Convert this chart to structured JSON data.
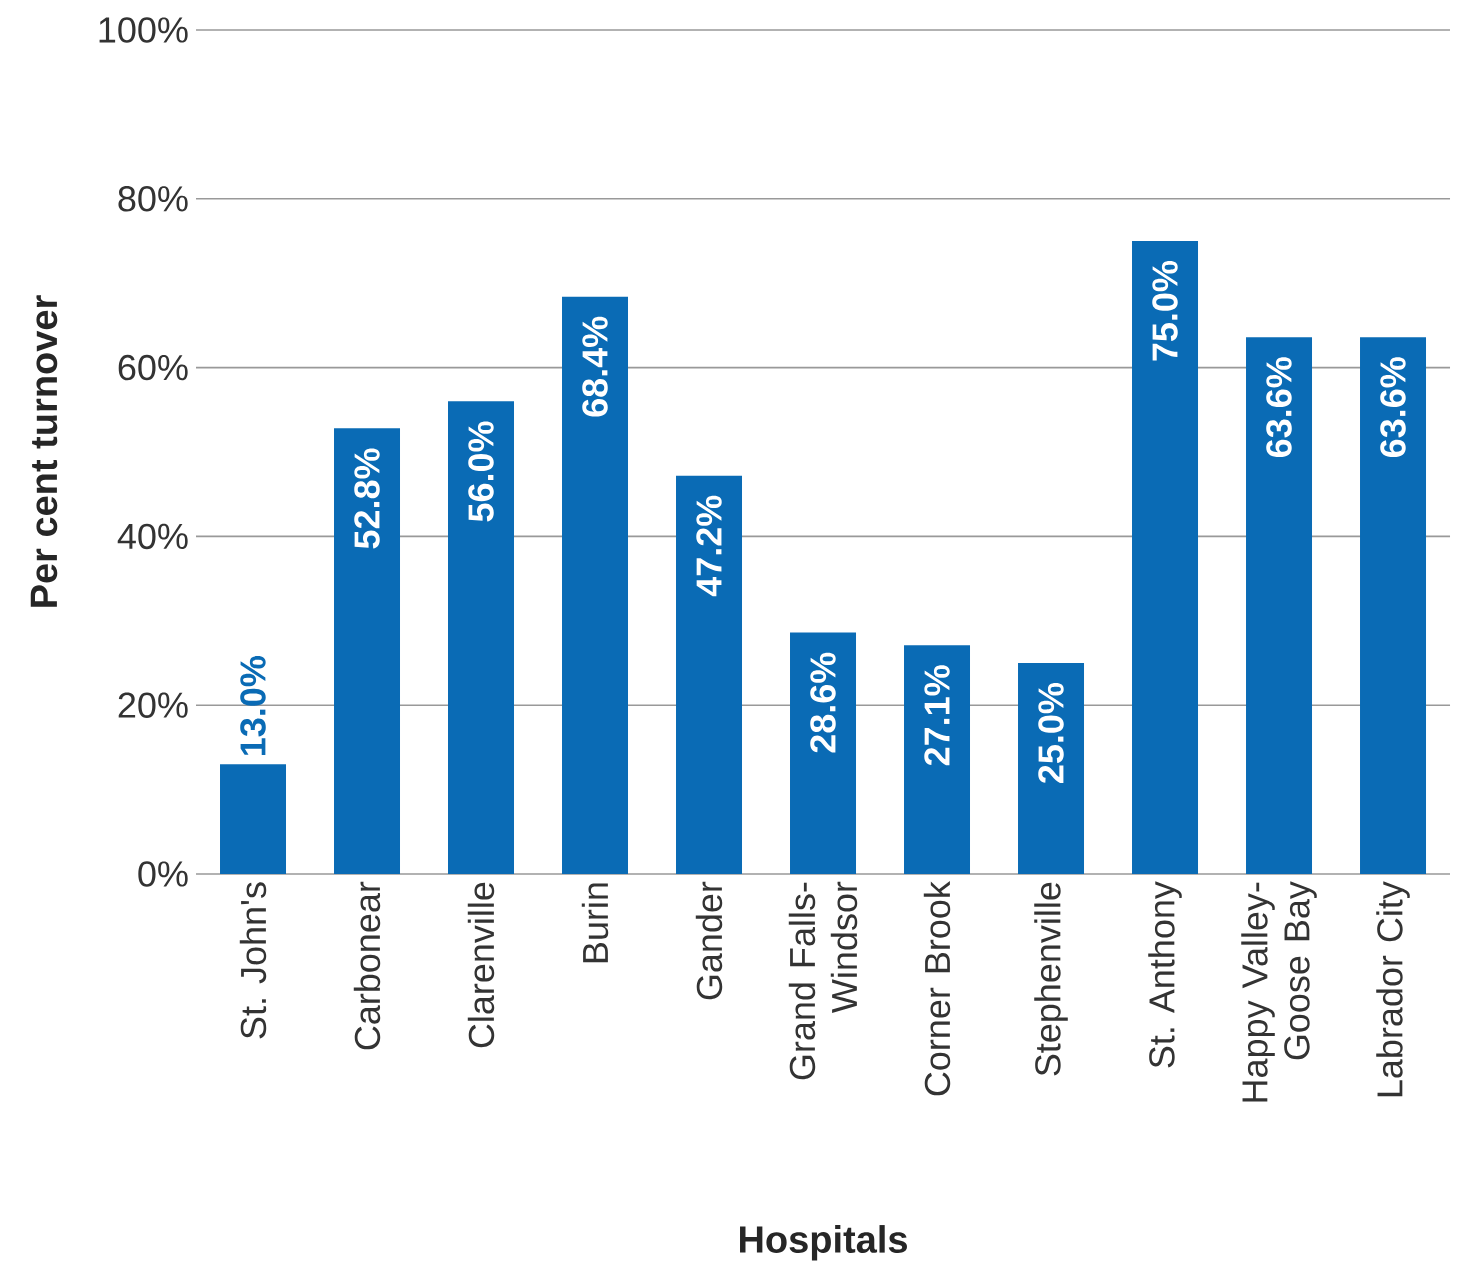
{
  "chart_data": {
    "type": "bar",
    "xlabel": "Hospitals",
    "ylabel": "Per cent turnover",
    "categories": [
      "St. John's",
      "Carbonear",
      "Clarenville",
      "Burin",
      "Gander",
      "Grand Falls-Windsor",
      "Corner Brook",
      "Stephenville",
      "St. Anthony",
      "Happy Valley-Goose Bay",
      "Labrador City"
    ],
    "values": [
      13.0,
      52.8,
      56.0,
      68.4,
      47.2,
      28.6,
      27.1,
      25.0,
      75.0,
      63.6,
      63.6
    ],
    "value_labels": [
      "13.0%",
      "52.8%",
      "56.0%",
      "68.4%",
      "47.2%",
      "28.6%",
      "27.1%",
      "25.0%",
      "75.0%",
      "63.6%",
      "63.6%"
    ],
    "color": "#0a6bb5",
    "ylim": [
      0,
      100
    ],
    "yticks": [
      {
        "value": 0,
        "label": "0%"
      },
      {
        "value": 20,
        "label": "20%"
      },
      {
        "value": 40,
        "label": "40%"
      },
      {
        "value": 60,
        "label": "60%"
      },
      {
        "value": 80,
        "label": "80%"
      },
      {
        "value": 100,
        "label": "100%"
      }
    ],
    "grid": "y"
  }
}
